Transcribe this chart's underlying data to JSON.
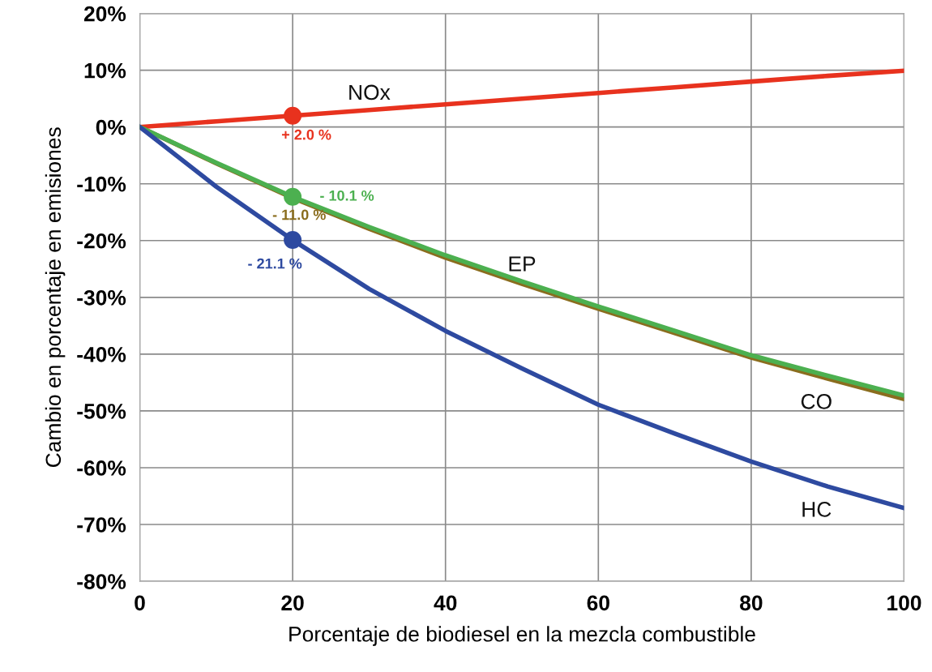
{
  "chart_data": {
    "type": "line",
    "xlabel": "Porcentaje de biodiesel en la mezcla combustible",
    "ylabel": "Cambio en porcentaje en emisiones",
    "x": [
      0,
      10,
      20,
      30,
      40,
      50,
      60,
      70,
      80,
      90,
      100
    ],
    "series": [
      {
        "name": "NOx",
        "color": "#e8321e",
        "values": [
          0,
          1,
          2,
          3,
          4,
          5,
          6,
          7,
          8,
          9,
          9.9
        ]
      },
      {
        "name": "CO",
        "color": "#8a6d1e",
        "values": [
          0,
          -6.4,
          -12.5,
          -17.9,
          -23,
          -27.6,
          -32,
          -36.3,
          -40.6,
          -44.3,
          -47.9
        ]
      },
      {
        "name": "EP",
        "color": "#4cb050",
        "values": [
          0,
          -6.3,
          -12.3,
          -17.6,
          -22.6,
          -27.2,
          -31.6,
          -35.9,
          -40.2,
          -43.8,
          -47.3
        ]
      },
      {
        "name": "HC",
        "color": "#2e4aa0",
        "values": [
          0,
          -10.5,
          -19.9,
          -28.5,
          -35.9,
          -42.5,
          -48.9,
          -54,
          -58.9,
          -63.3,
          -67.1
        ]
      },
      {
        "type": "scatter",
        "marker": "circle",
        "color": "#e8321e",
        "values": [
          null,
          null,
          2,
          null,
          null,
          null,
          null,
          null,
          null,
          null,
          null
        ]
      },
      {
        "type": "scatter",
        "marker": "circle",
        "color": "#4cb050",
        "values": [
          null,
          null,
          -12.3,
          null,
          null,
          null,
          null,
          null,
          null,
          null,
          null
        ]
      },
      {
        "type": "scatter",
        "marker": "circle",
        "color": "#2e4aa0",
        "values": [
          null,
          null,
          -19.9,
          null,
          null,
          null,
          null,
          null,
          null,
          null,
          null
        ]
      }
    ],
    "annotations": [
      "+ 2.0 %",
      "- 11.0 %",
      "- 10.1 %",
      "- 21.1 %"
    ],
    "xlim": [
      0,
      100
    ],
    "xticks": [
      0,
      20,
      40,
      60,
      80,
      100
    ],
    "ylim": [
      -80,
      20
    ],
    "yticks": [
      {
        "value": -80,
        "label": "-80%"
      },
      {
        "value": -70,
        "label": "-70%"
      },
      {
        "value": -60,
        "label": "-60%"
      },
      {
        "value": -50,
        "label": "-50%"
      },
      {
        "value": -40,
        "label": "-40%"
      },
      {
        "value": -30,
        "label": "-30%"
      },
      {
        "value": -20,
        "label": "-20%"
      },
      {
        "value": -10,
        "label": "-10%"
      },
      {
        "value": 0,
        "label": "0%"
      },
      {
        "value": 10,
        "label": "10%"
      },
      {
        "value": 20,
        "label": "20%"
      }
    ],
    "grid": true,
    "marker": "none",
    "line_style": "solid"
  }
}
